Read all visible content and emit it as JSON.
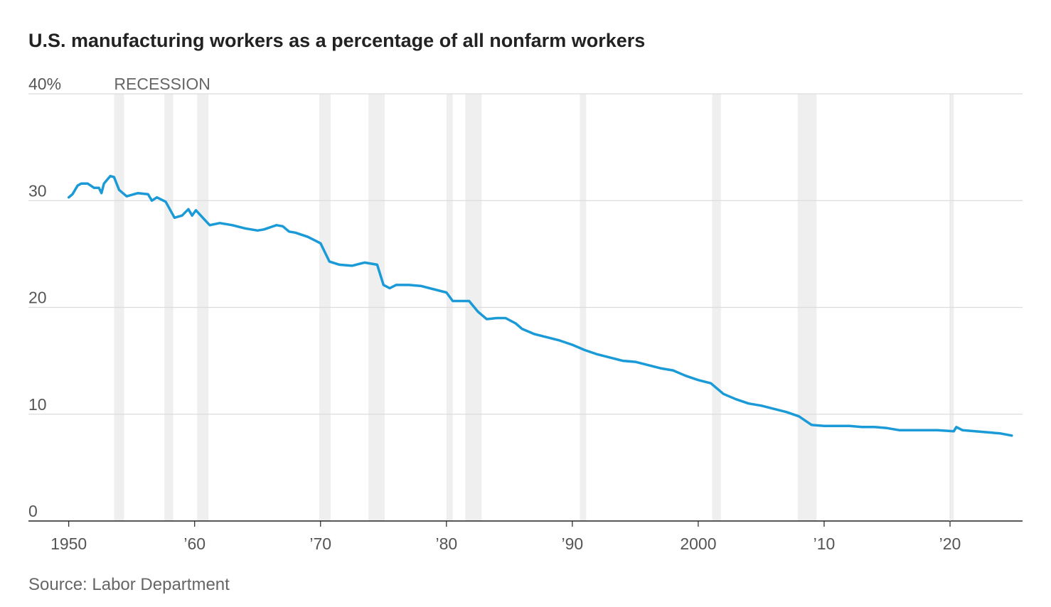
{
  "chart_data": {
    "type": "line",
    "title": "U.S. manufacturing workers as a percentage of all nonfarm workers",
    "source": "Source: Labor Department",
    "recession_label": "RECESSION",
    "recessions": [
      {
        "start": 1953.6,
        "end": 1954.4
      },
      {
        "start": 1957.6,
        "end": 1958.3
      },
      {
        "start": 1960.2,
        "end": 1961.1
      },
      {
        "start": 1969.9,
        "end": 1970.8
      },
      {
        "start": 1973.8,
        "end": 1975.1
      },
      {
        "start": 1980.0,
        "end": 1980.5
      },
      {
        "start": 1981.5,
        "end": 1982.8
      },
      {
        "start": 1990.6,
        "end": 1991.1
      },
      {
        "start": 2001.1,
        "end": 2001.8
      },
      {
        "start": 2007.9,
        "end": 2009.4
      },
      {
        "start": 2020.0,
        "end": 2020.3
      }
    ],
    "recession_color": "#efefef",
    "color": "#1a9ad6",
    "x": [
      1950.0,
      1950.3,
      1950.7,
      1951.0,
      1951.5,
      1952.0,
      1952.4,
      1952.6,
      1952.8,
      1953.3,
      1953.6,
      1954.0,
      1954.6,
      1955.5,
      1956.3,
      1956.6,
      1957.0,
      1957.7,
      1958.4,
      1959.0,
      1959.5,
      1959.8,
      1960.1,
      1960.8,
      1961.2,
      1962.0,
      1963.0,
      1964.0,
      1965.0,
      1965.5,
      1966.5,
      1967.0,
      1967.5,
      1968.0,
      1969.0,
      1970.0,
      1970.7,
      1971.5,
      1972.5,
      1973.5,
      1974.5,
      1975.0,
      1975.5,
      1976.0,
      1977.0,
      1978.0,
      1979.0,
      1980.0,
      1980.5,
      1981.0,
      1981.8,
      1982.5,
      1983.2,
      1984.0,
      1984.7,
      1985.5,
      1986.0,
      1987.0,
      1988.0,
      1989.0,
      1990.0,
      1991.0,
      1992.0,
      1993.0,
      1994.0,
      1995.0,
      1996.0,
      1997.0,
      1998.0,
      1999.0,
      2000.0,
      2001.0,
      2002.0,
      2003.0,
      2004.0,
      2005.0,
      2006.0,
      2007.0,
      2008.0,
      2009.0,
      2010.0,
      2011.0,
      2012.0,
      2013.0,
      2014.0,
      2015.0,
      2016.0,
      2017.0,
      2018.0,
      2019.0,
      2020.3,
      2020.5,
      2021.0,
      2022.0,
      2023.0,
      2024.0,
      2024.9
    ],
    "values": [
      30.3,
      30.6,
      31.4,
      31.6,
      31.6,
      31.2,
      31.2,
      30.7,
      31.6,
      32.3,
      32.2,
      31.0,
      30.4,
      30.7,
      30.6,
      30.0,
      30.3,
      29.9,
      28.4,
      28.6,
      29.2,
      28.6,
      29.1,
      28.2,
      27.7,
      27.9,
      27.7,
      27.4,
      27.2,
      27.3,
      27.7,
      27.6,
      27.1,
      27.0,
      26.6,
      26.0,
      24.3,
      24.0,
      23.9,
      24.2,
      24.0,
      22.1,
      21.8,
      22.1,
      22.1,
      22.0,
      21.7,
      21.4,
      20.6,
      20.6,
      20.6,
      19.6,
      18.9,
      19.0,
      19.0,
      18.5,
      18.0,
      17.5,
      17.2,
      16.9,
      16.5,
      16.0,
      15.6,
      15.3,
      15.0,
      14.9,
      14.6,
      14.3,
      14.1,
      13.6,
      13.2,
      12.9,
      11.9,
      11.4,
      11.0,
      10.8,
      10.5,
      10.2,
      9.8,
      9.0,
      8.9,
      8.9,
      8.9,
      8.8,
      8.8,
      8.7,
      8.5,
      8.5,
      8.5,
      8.5,
      8.4,
      8.8,
      8.5,
      8.4,
      8.3,
      8.2,
      8.0
    ],
    "xlim": [
      1946.8,
      2025.76
    ],
    "xticks": [
      1950,
      {
        "value": 1960,
        "label": "’60"
      },
      {
        "value": 1970,
        "label": "’70"
      },
      {
        "value": 1980,
        "label": "’80"
      },
      {
        "value": 1990,
        "label": "’90"
      },
      2000,
      {
        "value": 2010,
        "label": "’10"
      },
      {
        "value": 2020,
        "label": "’20"
      }
    ],
    "ylim": [
      0,
      40
    ],
    "yticks": [
      0,
      10,
      20,
      30,
      {
        "value": 40,
        "label": "40%"
      }
    ],
    "grid": true
  }
}
